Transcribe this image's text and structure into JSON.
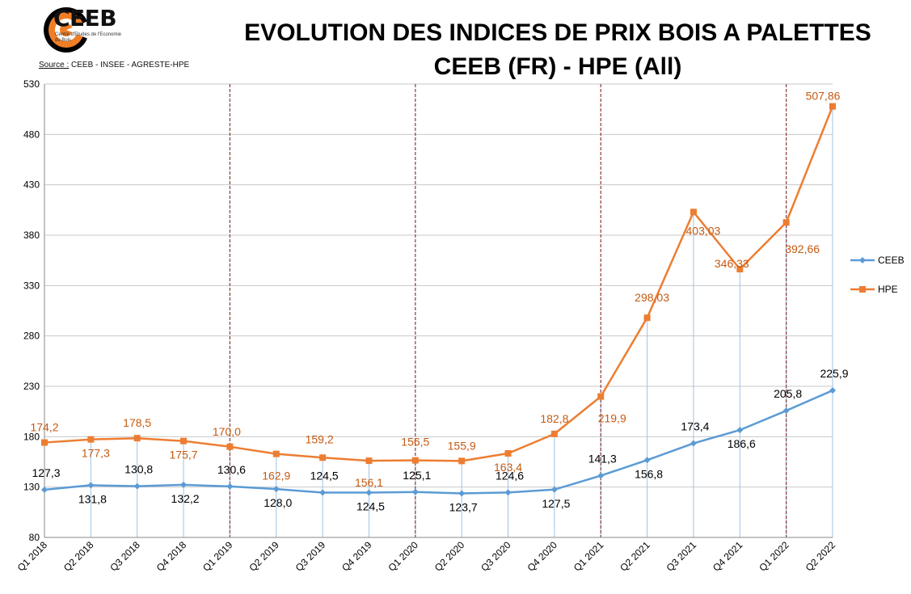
{
  "header": {
    "logo_text": "CEEB",
    "logo_subtitle": "Centre d'Etudes de l'Economie du Bois",
    "source_label": "Source :",
    "source_value": "CEEB - INSEE - AGRESTE-HPE",
    "title_line1": "EVOLUTION DES INDICES DE PRIX BOIS A PALETTES",
    "title_line2": "CEEB (FR) - HPE (All)"
  },
  "colors": {
    "ceeb": "#5b9bd5",
    "hpe": "#ed7d31",
    "hpe_label": "#c55a11",
    "ceeb_label": "#000000",
    "year_line": "#8b3a3a",
    "grid": "#d0d0d0",
    "logo_orange": "#f07e26"
  },
  "chart_data": {
    "type": "line",
    "categories": [
      "Q1 2018",
      "Q2 2018",
      "Q3 2018",
      "Q4 2018",
      "Q1 2019",
      "Q2 2019",
      "Q3 2019",
      "Q4 2019",
      "Q1 2020",
      "Q2 2020",
      "Q3 2020",
      "Q4 2020",
      "Q1 2021",
      "Q2 2021",
      "Q3 2021",
      "Q4 2021",
      "Q1 2022",
      "Q2 2022"
    ],
    "ylim": [
      80,
      530
    ],
    "yticks": [
      80,
      130,
      180,
      230,
      280,
      330,
      380,
      430,
      480,
      530
    ],
    "grid": true,
    "legend_position": "right",
    "year_separators": [
      "Q1 2019",
      "Q1 2020",
      "Q1 2021",
      "Q1 2022"
    ],
    "series": [
      {
        "name": "CEEB",
        "values": [
          127.3,
          131.8,
          130.8,
          132.2,
          130.6,
          128.0,
          124.5,
          124.5,
          125.1,
          123.7,
          124.6,
          127.5,
          141.3,
          156.8,
          173.4,
          186.6,
          205.8,
          225.9
        ],
        "labels": [
          "127,3",
          "131,8",
          "130,8",
          "132,2",
          "130,6",
          "128,0",
          "124,5",
          "124,5",
          "125,1",
          "123,7",
          "124,6",
          "127,5",
          "141,3",
          "156,8",
          "173,4",
          "186,6",
          "205,8",
          "225,9"
        ]
      },
      {
        "name": "HPE",
        "values": [
          174.2,
          177.3,
          178.5,
          175.7,
          170.0,
          162.9,
          159.2,
          156.1,
          156.5,
          155.9,
          163.4,
          182.8,
          219.9,
          298.03,
          403.03,
          346.33,
          392.66,
          507.86
        ],
        "labels": [
          "174,2",
          "177,3",
          "178,5",
          "175,7",
          "170,0",
          "162,9",
          "159,2",
          "156,1",
          "156,5",
          "155,9",
          "163,4",
          "182,8",
          "219,9",
          "298,03",
          "403,03",
          "346,33",
          "392,66",
          "507,86"
        ]
      }
    ]
  }
}
